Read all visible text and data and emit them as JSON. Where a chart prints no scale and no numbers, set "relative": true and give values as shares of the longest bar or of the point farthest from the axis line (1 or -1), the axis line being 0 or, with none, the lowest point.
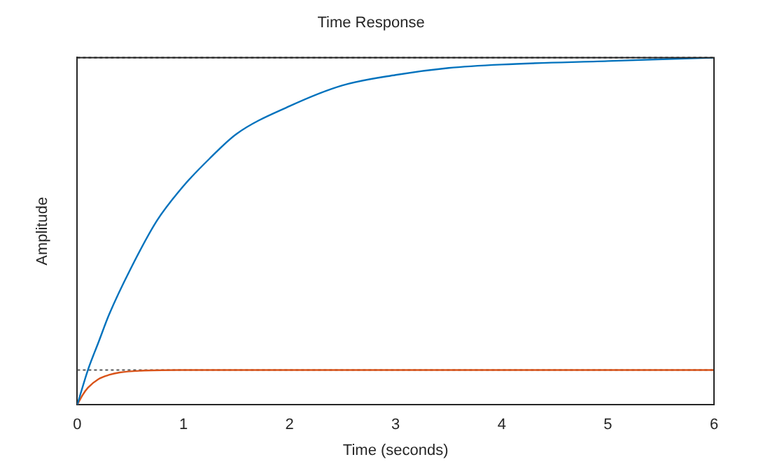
{
  "chart_data": {
    "type": "line",
    "title": "Time Response",
    "xlabel": "Time (seconds)",
    "ylabel": "Amplitude",
    "relative": true,
    "xlim": [
      0,
      6
    ],
    "xticks": [
      0,
      1,
      2,
      3,
      4,
      5,
      6
    ],
    "grid": false,
    "legend": false,
    "marker": "none",
    "line_style": "solid",
    "series": [
      {
        "color": "#0072bd",
        "x": [
          0,
          0.1,
          0.2,
          0.3,
          0.5,
          0.75,
          1,
          1.25,
          1.5,
          2,
          2.5,
          3,
          3.5,
          4,
          5,
          6
        ],
        "values": [
          0,
          0.1,
          0.18,
          0.26,
          0.39,
          0.53,
          0.63,
          0.71,
          0.78,
          0.86,
          0.92,
          0.95,
          0.97,
          0.98,
          0.99,
          1
        ]
      },
      {
        "color": "#d95319",
        "x": [
          0,
          0.05,
          0.1,
          0.2,
          0.3,
          0.4,
          0.6,
          1,
          6
        ],
        "values": [
          0,
          0.028,
          0.049,
          0.074,
          0.086,
          0.093,
          0.098,
          0.1,
          0.1
        ]
      }
    ],
    "ref_lines": [
      {
        "axis": "y",
        "value": 1,
        "color": "#333333",
        "line_style": "dotted"
      },
      {
        "axis": "y",
        "value": 0.1,
        "color": "#555555",
        "line_style": "dotted"
      }
    ]
  }
}
